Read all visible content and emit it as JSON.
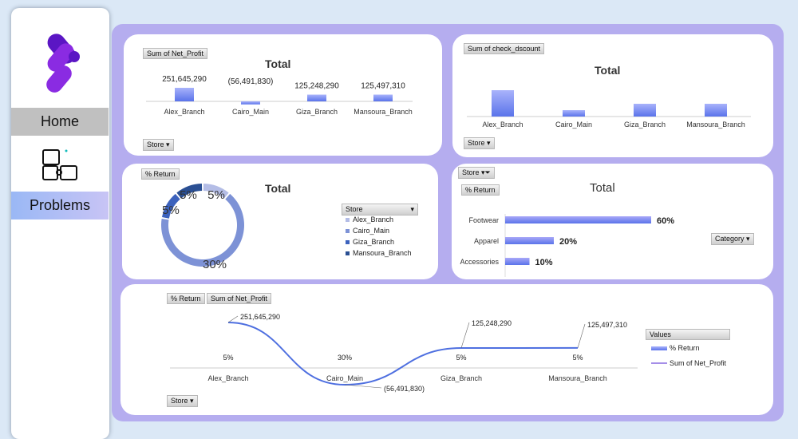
{
  "sidebar": {
    "home": "Home",
    "problems": "Problems"
  },
  "colors": {
    "bar": "#7f8cf2",
    "line": "#4e6fe0",
    "line2": "#a58ee8",
    "accent": "#b5adef"
  },
  "chart_data": [
    {
      "type": "bar",
      "id": "net_profit",
      "field_button": "Sum of Net_Profit",
      "title": "Total",
      "filter": "Store",
      "categories": [
        "Alex_Branch",
        "Cairo_Main",
        "Giza_Branch",
        "Mansoura_Branch"
      ],
      "values": [
        251645290,
        -56491830,
        125248290,
        125497310
      ],
      "labels": [
        "251,645,290",
        "(56,491,830)",
        "125,248,290",
        "125,497,310"
      ]
    },
    {
      "type": "bar",
      "id": "check_discount",
      "field_button": "Sum of check_dscount",
      "title": "Total",
      "filter": "Store",
      "categories": [
        "Alex_Branch",
        "Cairo_Main",
        "Giza_Branch",
        "Mansoura_Branch"
      ],
      "values": [
        33,
        8,
        16,
        16
      ]
    },
    {
      "type": "pie",
      "id": "return_donut",
      "field_button": "% Return",
      "title": "Total",
      "legend_title": "Store",
      "categories": [
        "Alex_Branch",
        "Cairo_Main",
        "Giza_Branch",
        "Mansoura_Branch"
      ],
      "values": [
        5,
        30,
        5,
        5
      ],
      "labels": [
        "5%",
        "30%",
        "5%",
        "5%"
      ],
      "colors": [
        "#b4bde6",
        "#7d92d6",
        "#3c62bd",
        "#2a4f93"
      ]
    },
    {
      "type": "bar",
      "id": "category_return",
      "filter_button": "Store",
      "field_button": "% Return",
      "title": "Total",
      "axis_button": "Category",
      "categories": [
        "Footwear",
        "Apparel",
        "Accessories"
      ],
      "values": [
        60,
        20,
        10
      ],
      "labels": [
        "60%",
        "20%",
        "10%"
      ]
    },
    {
      "type": "line",
      "id": "combo",
      "buttons": [
        "% Return",
        "Sum of Net_Profit"
      ],
      "filter": "Store",
      "legend_title": "Values",
      "legend": [
        "% Return",
        "Sum of Net_Profit"
      ],
      "categories": [
        "Alex_Branch",
        "Cairo_Main",
        "Giza_Branch",
        "Mansoura_Branch"
      ],
      "return_labels": [
        "5%",
        "30%",
        "5%",
        "5%"
      ],
      "profit": [
        251645290,
        -56491830,
        125248290,
        125497310
      ],
      "profit_labels": [
        "251,645,290",
        "(56,491,830)",
        "125,248,290",
        "125,497,310"
      ]
    }
  ]
}
